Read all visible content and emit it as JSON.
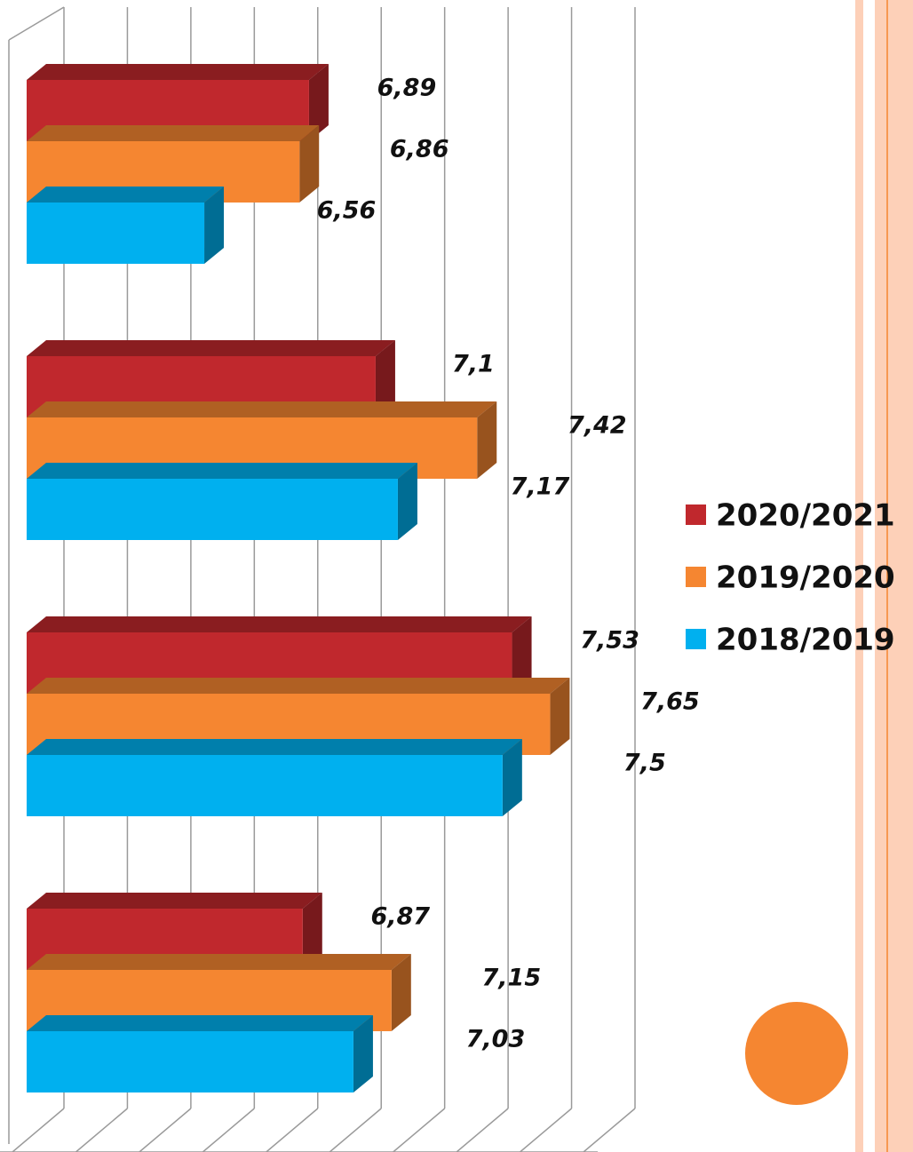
{
  "chart_data": {
    "type": "bar",
    "orientation": "horizontal",
    "three_d": true,
    "categories": [
      null,
      null,
      null,
      null
    ],
    "series": [
      {
        "name": "2020/2021",
        "color": "#c0282d",
        "values": [
          6.89,
          7.1,
          7.53,
          6.87
        ],
        "value_labels": [
          "6,89",
          "7,1",
          "7,53",
          "6,87"
        ]
      },
      {
        "name": "2019/2020",
        "color": "#f58631",
        "values": [
          6.86,
          7.42,
          7.65,
          7.15
        ],
        "value_labels": [
          "6,86",
          "7,42",
          "7,65",
          "7,15"
        ]
      },
      {
        "name": "2018/2019",
        "color": "#00b0ef",
        "values": [
          6.56,
          7.17,
          7.5,
          7.03
        ],
        "value_labels": [
          "6,56",
          "7,17",
          "7,5",
          "7,03"
        ]
      }
    ],
    "xlim": [
      6,
      7.8
    ],
    "xticks": [
      6,
      6.2,
      6.4,
      6.6,
      6.8,
      7,
      7.2,
      7.4,
      7.6,
      7.8
    ],
    "grid": true,
    "legend": "right"
  }
}
